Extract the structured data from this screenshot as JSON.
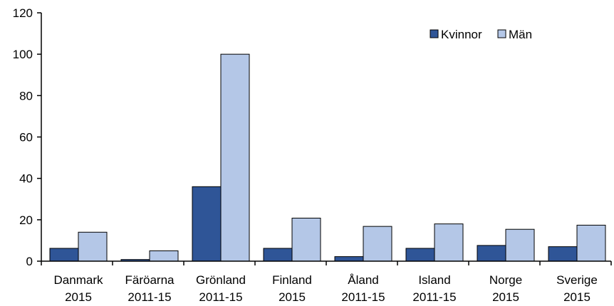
{
  "chart_data": {
    "type": "bar",
    "categories": [
      [
        "Danmark",
        "2015"
      ],
      [
        "Färöarna",
        "2011-15"
      ],
      [
        "Grönland",
        "2011-15"
      ],
      [
        "Finland",
        "2015"
      ],
      [
        "Åland",
        "2011-15"
      ],
      [
        "Island",
        "2011-15"
      ],
      [
        "Norge",
        "2015"
      ],
      [
        "Sverige",
        "2015"
      ]
    ],
    "series": [
      {
        "name": "Kvinnor",
        "color": "#2F5597",
        "values": [
          6.2,
          0.8,
          36,
          6.2,
          2.2,
          6.2,
          7.6,
          7.0
        ]
      },
      {
        "name": "Män",
        "color": "#B4C7E7",
        "values": [
          14,
          5.0,
          100,
          20.8,
          16.8,
          18.0,
          15.4,
          17.4
        ]
      }
    ],
    "ylim": [
      0,
      120
    ],
    "yticks": [
      "0",
      "20",
      "40",
      "60",
      "80",
      "100",
      "120"
    ],
    "grid": false,
    "legend": "top-right"
  }
}
